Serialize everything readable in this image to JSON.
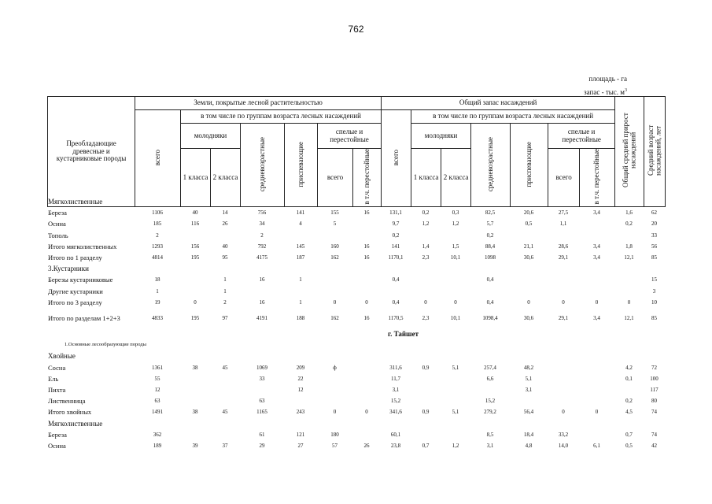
{
  "page_number": "762",
  "units": {
    "area": "площадь - га",
    "stock": "запас - тыс. м",
    "stock_sup": "3"
  },
  "header": {
    "species": "Преобладающие древесные и кустарниковые породы",
    "land_covered": "Земли, покрытые лесной растительностью",
    "total_stock": "Общий запас насаждений",
    "by_age_groups": "в том числе по группам возраста лесных насаждений",
    "total": "всего",
    "young": "молодняки",
    "class1": "1 класса",
    "class2": "2 класса",
    "middle_aged": "средневозрастные",
    "maturing": "приспевающие",
    "mature": "спелые и перестойные",
    "mature_total": "всего",
    "overmature": "в т.ч. перестойные",
    "avg_growth": "Общий средний прирост насаждений",
    "avg_age": "Средний возраст насаждений, лет"
  },
  "rows": [
    {
      "type": "section",
      "name": "Мягколиственные"
    },
    {
      "type": "data",
      "name": "Береза",
      "v": [
        "1106",
        "40",
        "14",
        "756",
        "141",
        "155",
        "16",
        "131,1",
        "0,2",
        "0,3",
        "82,5",
        "20,6",
        "27,5",
        "3,4",
        "1,6",
        "62"
      ]
    },
    {
      "type": "data",
      "name": "Осина",
      "v": [
        "185",
        "116",
        "26",
        "34",
        "4",
        "5",
        "",
        "9,7",
        "1,2",
        "1,2",
        "5,7",
        "0,5",
        "1,1",
        "",
        "0,2",
        "20"
      ]
    },
    {
      "type": "data",
      "name": "Тополь",
      "v": [
        "2",
        "",
        "",
        "2",
        "",
        "",
        "",
        "0,2",
        "",
        "",
        "0,2",
        "",
        "",
        "",
        "",
        "33"
      ]
    },
    {
      "type": "data",
      "name": "Итого мягколиственных",
      "v": [
        "1293",
        "156",
        "40",
        "792",
        "145",
        "160",
        "16",
        "141",
        "1,4",
        "1,5",
        "88,4",
        "21,1",
        "28,6",
        "3,4",
        "1,8",
        "56"
      ]
    },
    {
      "type": "data",
      "name": "Итого по 1 разделу",
      "v": [
        "4814",
        "195",
        "95",
        "4175",
        "187",
        "162",
        "16",
        "1170,1",
        "2,3",
        "10,1",
        "1098",
        "30,6",
        "29,1",
        "3,4",
        "12,1",
        "85"
      ]
    },
    {
      "type": "section",
      "name": "3.Кустарники"
    },
    {
      "type": "data",
      "name": "Березы кустарниковые",
      "v": [
        "18",
        "",
        "1",
        "16",
        "1",
        "",
        "",
        "0,4",
        "",
        "",
        "0,4",
        "",
        "",
        "",
        "",
        "15"
      ]
    },
    {
      "type": "data",
      "name": "Другие кустарники",
      "v": [
        "1",
        "",
        "1",
        "",
        "",
        "",
        "",
        "",
        "",
        "",
        "",
        "",
        "",
        "",
        "",
        "3"
      ]
    },
    {
      "type": "data",
      "name": "Итого по 3 разделу",
      "v": [
        "19",
        "0",
        "2",
        "16",
        "1",
        "0",
        "0",
        "0,4",
        "0",
        "0",
        "0,4",
        "0",
        "0",
        "0",
        "0",
        "10"
      ]
    },
    {
      "type": "data",
      "name": "Итого по разделам 1+2+3",
      "v": [
        "4833",
        "195",
        "97",
        "4191",
        "188",
        "162",
        "16",
        "1170,5",
        "2,3",
        "10,1",
        "1098,4",
        "30,6",
        "29,1",
        "3,4",
        "12,1",
        "85"
      ]
    },
    {
      "type": "city",
      "name": "г. Тайшет"
    },
    {
      "type": "sub",
      "name": "1.Основные лесообразующие породы"
    },
    {
      "type": "section",
      "name": "Хвойные"
    },
    {
      "type": "data",
      "name": "Сосна",
      "v": [
        "1361",
        "38",
        "45",
        "1069",
        "209",
        "ф",
        "",
        "311,6",
        "0,9",
        "5,1",
        "257,4",
        "48,2",
        "",
        "",
        "4,2",
        "72"
      ]
    },
    {
      "type": "data",
      "name": "Ель",
      "v": [
        "55",
        "",
        "",
        "33",
        "22",
        "",
        "",
        "11,7",
        "",
        "",
        "6,6",
        "5,1",
        "",
        "",
        "0,1",
        "100"
      ]
    },
    {
      "type": "data",
      "name": "Пихта",
      "v": [
        "12",
        "",
        "",
        "",
        "12",
        "",
        "",
        "3,1",
        "",
        "",
        "",
        "3,1",
        "",
        "",
        "",
        "117"
      ]
    },
    {
      "type": "data",
      "name": "Лиственница",
      "v": [
        "63",
        "",
        "",
        "63",
        "",
        "",
        "",
        "15,2",
        "",
        "",
        "15,2",
        "",
        "",
        "",
        "0,2",
        "80"
      ]
    },
    {
      "type": "data",
      "name": "Итого хвойных",
      "v": [
        "1491",
        "38",
        "45",
        "1165",
        "243",
        "0",
        "0",
        "341,6",
        "0,9",
        "5,1",
        "279,2",
        "56,4",
        "0",
        "0",
        "4,5",
        "74"
      ]
    },
    {
      "type": "section",
      "name": "Мягколиственные"
    },
    {
      "type": "data",
      "name": "Береза",
      "v": [
        "362",
        "",
        "",
        "61",
        "121",
        "180",
        "",
        "60,1",
        "",
        "",
        "8,5",
        "18,4",
        "33,2",
        "",
        "0,7",
        "74"
      ]
    },
    {
      "type": "data",
      "name": "Осина",
      "v": [
        "189",
        "39",
        "37",
        "29",
        "27",
        "57",
        "26",
        "23,8",
        "0,7",
        "1,2",
        "3,1",
        "4,8",
        "14,0",
        "6,1",
        "0,5",
        "42"
      ]
    }
  ]
}
